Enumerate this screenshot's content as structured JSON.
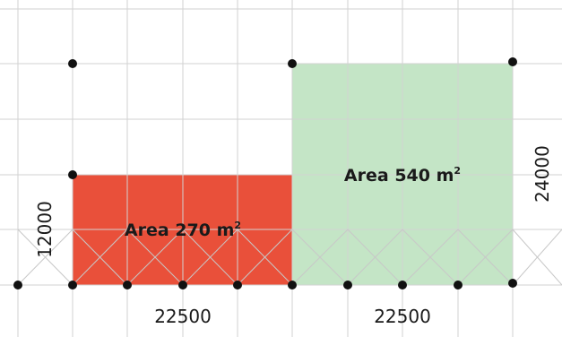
{
  "colors": {
    "background": "#ffffff",
    "grid": "#d2d2d2",
    "brace": "#c8c8c8",
    "node": "#111111",
    "text": "#1a1a1a",
    "area_small_fill": "#e9503a",
    "area_large_fill": "#c4e5c6"
  },
  "areas": {
    "small": {
      "prefix": "Area 270 m",
      "sup": "2"
    },
    "large": {
      "prefix": "Area 540 m",
      "sup": "2"
    }
  },
  "dimensions": {
    "bottom_left": "22500",
    "bottom_right": "22500",
    "left_height": "12000",
    "right_height": "24000"
  }
}
